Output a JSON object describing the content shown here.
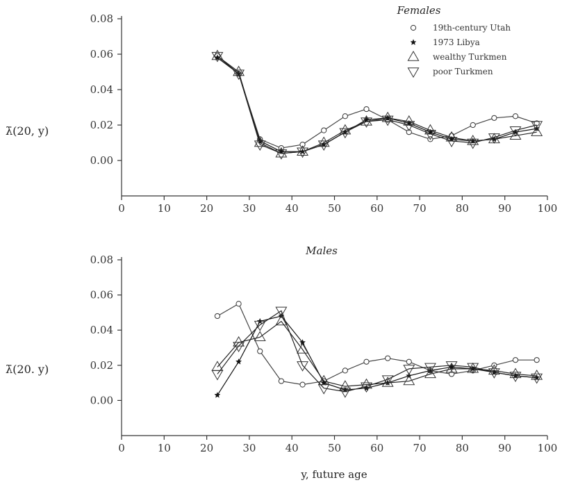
{
  "chart_data": [
    {
      "type": "line",
      "title": "Females",
      "ylabel": "λ̄(20, y)",
      "xlabel": "",
      "xlim": [
        0,
        100
      ],
      "ylim": [
        -0.02,
        0.08
      ],
      "xticks": [
        0,
        10,
        20,
        30,
        40,
        50,
        60,
        70,
        80,
        90,
        100
      ],
      "yticks": [
        0.08,
        0.06,
        0.04,
        0.02,
        0.0
      ],
      "ytick_labels": [
        "0.08",
        "0.06",
        "0.04",
        "0.02",
        "0.00"
      ],
      "legend": {
        "placement": "top-right"
      },
      "series": [
        {
          "name": "19th-century Utah",
          "marker": "circle",
          "x": [
            22.5,
            27.5,
            32.5,
            37.5,
            42.5,
            47.5,
            52.5,
            57.5,
            62.5,
            67.5,
            72.5,
            77.5,
            82.5,
            87.5,
            92.5,
            97.5
          ],
          "y": [
            0.059,
            0.049,
            0.012,
            0.007,
            0.009,
            0.017,
            0.025,
            0.029,
            0.023,
            0.016,
            0.012,
            0.014,
            0.02,
            0.024,
            0.025,
            0.021
          ]
        },
        {
          "name": "1973 Libya",
          "marker": "star",
          "x": [
            22.5,
            27.5,
            32.5,
            37.5,
            42.5,
            47.5,
            52.5,
            57.5,
            62.5,
            67.5,
            72.5,
            77.5,
            82.5,
            87.5,
            92.5,
            97.5
          ],
          "y": [
            0.058,
            0.049,
            0.011,
            0.005,
            0.005,
            0.009,
            0.016,
            0.023,
            0.024,
            0.021,
            0.016,
            0.012,
            0.011,
            0.012,
            0.016,
            0.018
          ]
        },
        {
          "name": "wealthy Turkmen",
          "marker": "triangle-up",
          "x": [
            22.5,
            27.5,
            32.5,
            37.5,
            42.5,
            47.5,
            52.5,
            57.5,
            62.5,
            67.5,
            72.5,
            77.5,
            82.5,
            87.5,
            92.5,
            97.5
          ],
          "y": [
            0.059,
            0.05,
            0.01,
            0.004,
            0.005,
            0.01,
            0.017,
            0.022,
            0.024,
            0.022,
            0.017,
            0.013,
            0.011,
            0.012,
            0.014,
            0.016
          ]
        },
        {
          "name": "poor Turkmen",
          "marker": "triangle-down",
          "x": [
            22.5,
            27.5,
            32.5,
            37.5,
            42.5,
            47.5,
            52.5,
            57.5,
            62.5,
            67.5,
            72.5,
            77.5,
            82.5,
            87.5,
            92.5,
            97.5
          ],
          "y": [
            0.059,
            0.049,
            0.009,
            0.004,
            0.005,
            0.009,
            0.016,
            0.022,
            0.023,
            0.02,
            0.015,
            0.011,
            0.01,
            0.013,
            0.017,
            0.02
          ]
        }
      ]
    },
    {
      "type": "line",
      "title": "Males",
      "ylabel": "λ̄(20. y)",
      "xlabel": "y, future age",
      "xlim": [
        0,
        100
      ],
      "ylim": [
        -0.02,
        0.08
      ],
      "xticks": [
        0,
        10,
        20,
        30,
        40,
        50,
        60,
        70,
        80,
        90,
        100
      ],
      "yticks": [
        0.08,
        0.06,
        0.04,
        0.02,
        0.0
      ],
      "ytick_labels": [
        "0.08",
        "0.06",
        "0.04",
        "0.02",
        "0.00"
      ],
      "series": [
        {
          "name": "19th-century Utah",
          "marker": "circle",
          "x": [
            22.5,
            27.5,
            32.5,
            37.5,
            42.5,
            47.5,
            52.5,
            57.5,
            62.5,
            67.5,
            72.5,
            77.5,
            82.5,
            87.5,
            92.5,
            97.5
          ],
          "y": [
            0.048,
            0.055,
            0.028,
            0.011,
            0.009,
            0.011,
            0.017,
            0.022,
            0.024,
            0.022,
            0.017,
            0.015,
            0.017,
            0.02,
            0.023,
            0.023
          ]
        },
        {
          "name": "1973 Libya",
          "marker": "star",
          "x": [
            22.5,
            27.5,
            32.5,
            37.5,
            42.5,
            47.5,
            52.5,
            57.5,
            62.5,
            67.5,
            72.5,
            77.5,
            82.5,
            87.5,
            92.5,
            97.5
          ],
          "y": [
            0.003,
            0.022,
            0.045,
            0.048,
            0.033,
            0.01,
            0.006,
            0.007,
            0.01,
            0.014,
            0.017,
            0.019,
            0.018,
            0.016,
            0.014,
            0.013
          ]
        },
        {
          "name": "wealthy Turkmen",
          "marker": "triangle-up",
          "x": [
            22.5,
            27.5,
            32.5,
            37.5,
            42.5,
            47.5,
            52.5,
            57.5,
            62.5,
            67.5,
            72.5,
            77.5,
            82.5,
            87.5,
            92.5,
            97.5
          ],
          "y": [
            0.019,
            0.033,
            0.036,
            0.045,
            0.029,
            0.011,
            0.008,
            0.009,
            0.01,
            0.011,
            0.015,
            0.018,
            0.018,
            0.017,
            0.015,
            0.014
          ]
        },
        {
          "name": "poor Turkmen",
          "marker": "triangle-down",
          "x": [
            22.5,
            27.5,
            32.5,
            37.5,
            42.5,
            47.5,
            52.5,
            57.5,
            62.5,
            67.5,
            72.5,
            77.5,
            82.5,
            87.5,
            92.5,
            97.5
          ],
          "y": [
            0.015,
            0.031,
            0.043,
            0.051,
            0.02,
            0.007,
            0.005,
            0.008,
            0.012,
            0.018,
            0.019,
            0.02,
            0.019,
            0.016,
            0.014,
            0.013
          ]
        }
      ]
    }
  ]
}
